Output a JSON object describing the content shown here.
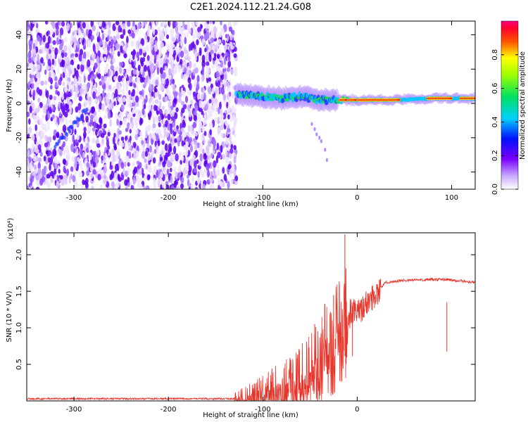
{
  "title": "C2E1.2024.112.21.24.G08",
  "chart_data": [
    {
      "type": "heatmap",
      "xlabel": "Height of straight line (km)",
      "ylabel": "Frequency (Hz)",
      "xlim": [
        -350,
        125
      ],
      "ylim": [
        -50,
        48
      ],
      "x_ticks": [
        -300,
        -200,
        -100,
        0,
        100
      ],
      "y_ticks": [
        -40,
        -20,
        0,
        20,
        40
      ],
      "colorbar": {
        "label": "Normalized spectral amplitude",
        "range": [
          0,
          1
        ],
        "ticks": [
          0.0,
          0.2,
          0.4,
          0.6,
          0.8
        ]
      },
      "regions": [
        {
          "name": "noise",
          "x": [
            -350,
            -128
          ],
          "y": [
            -50,
            48
          ],
          "amplitude": [
            0.0,
            0.25
          ]
        },
        {
          "name": "signal-band",
          "x": [
            -128,
            125
          ],
          "y": [
            -5,
            7
          ],
          "amplitude": [
            0.3,
            1.0
          ]
        }
      ],
      "signal_center_frequency": [
        {
          "x": -128,
          "y": 5
        },
        {
          "x": -100,
          "y": 4
        },
        {
          "x": -80,
          "y": 3
        },
        {
          "x": -60,
          "y": 4
        },
        {
          "x": -40,
          "y": 2
        },
        {
          "x": -20,
          "y": 2
        },
        {
          "x": 0,
          "y": 2
        },
        {
          "x": 40,
          "y": 2
        },
        {
          "x": 80,
          "y": 3
        },
        {
          "x": 125,
          "y": 3
        }
      ],
      "colors": {
        "noise": "#7b2cff",
        "signal_core": "#ff2020",
        "signal_mid": "#00e040",
        "signal_edge": "#00c8ff"
      }
    },
    {
      "type": "line",
      "xlabel": "Height of straight line (km)",
      "ylabel": "SNR (10 * V/V)",
      "y_multiplier": "(x10⁴)",
      "xlim": [
        -350,
        125
      ],
      "ylim": [
        0,
        2.3
      ],
      "x_ticks": [
        -300,
        -200,
        -100,
        0
      ],
      "y_ticks": [
        0.5,
        1.0,
        1.5,
        2.0
      ],
      "y_tick_labels": [
        "0.5",
        "1.0",
        "1.5",
        "2.0"
      ],
      "series": [
        {
          "color": "#e8352a",
          "points": [
            {
              "x": -350,
              "y": 0.03
            },
            {
              "x": -250,
              "y": 0.03
            },
            {
              "x": -130,
              "y": 0.03
            },
            {
              "x": -115,
              "y": 0.08
            },
            {
              "x": -100,
              "y": 0.15
            },
            {
              "x": -80,
              "y": 0.25
            },
            {
              "x": -60,
              "y": 0.35
            },
            {
              "x": -45,
              "y": 0.6
            },
            {
              "x": -30,
              "y": 0.9
            },
            {
              "x": -20,
              "y": 1.05
            },
            {
              "x": -12,
              "y": 1.25
            },
            {
              "x": 0,
              "y": 1.2
            },
            {
              "x": 15,
              "y": 1.4
            },
            {
              "x": 30,
              "y": 1.62
            },
            {
              "x": 50,
              "y": 1.65
            },
            {
              "x": 80,
              "y": 1.66
            },
            {
              "x": 95,
              "y": 1.66
            },
            {
              "x": 110,
              "y": 1.64
            },
            {
              "x": 125,
              "y": 1.62
            }
          ],
          "spikes": [
            {
              "x": -13,
              "y": 2.28
            },
            {
              "x": -25,
              "y": 1.45
            },
            {
              "x": -45,
              "y": 1.05
            },
            {
              "x": -5,
              "y": 1.3
            },
            {
              "x": 95,
              "y": 1.35
            }
          ]
        }
      ]
    }
  ]
}
